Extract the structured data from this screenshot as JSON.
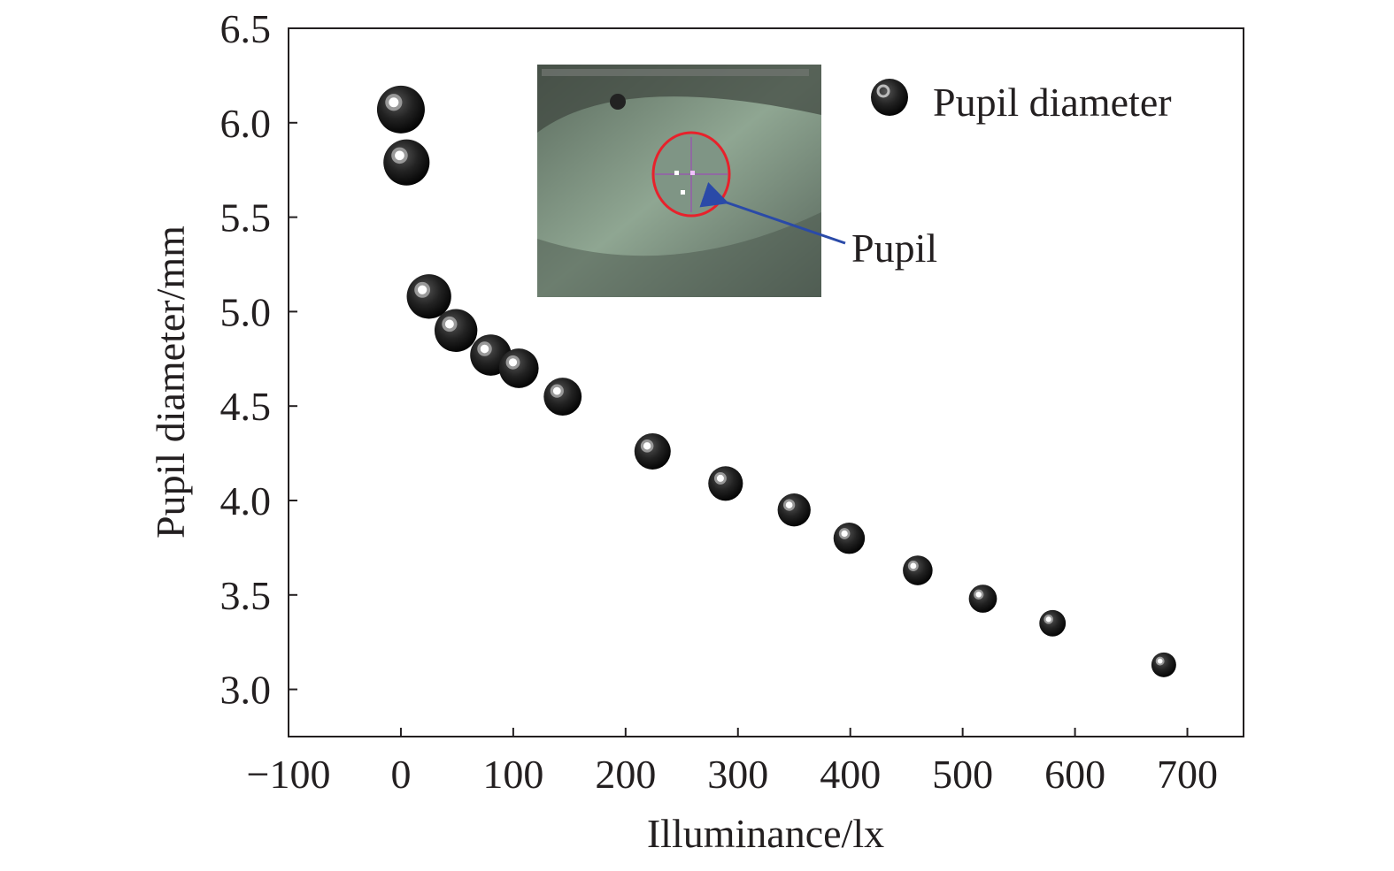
{
  "chart_data": {
    "type": "scatter",
    "title": "",
    "xlabel": "Illuminance/lx",
    "ylabel": "Pupil diameter/mm",
    "xlim": [
      -100,
      750
    ],
    "ylim": [
      2.75,
      6.5
    ],
    "xticks": [
      -100,
      0,
      100,
      200,
      300,
      400,
      500,
      600,
      700
    ],
    "xtick_labels": [
      "−100",
      "0",
      "100",
      "200",
      "300",
      "400",
      "500",
      "600",
      "700"
    ],
    "yticks": [
      3.0,
      3.5,
      4.0,
      4.5,
      5.0,
      5.5,
      6.0,
      6.5
    ],
    "ytick_labels": [
      "3.0",
      "3.5",
      "4.0",
      "4.5",
      "5.0",
      "5.5",
      "6.0",
      "6.5"
    ],
    "grid": false,
    "legend": {
      "position": "top-right",
      "entries": [
        "Pupil diameter"
      ]
    },
    "series": [
      {
        "name": "Pupil diameter",
        "x": [
          0,
          5,
          25,
          49,
          80,
          105,
          144,
          224,
          289,
          350,
          399,
          460,
          518,
          580,
          679
        ],
        "y": [
          6.07,
          5.79,
          5.08,
          4.9,
          4.77,
          4.7,
          4.55,
          4.26,
          4.09,
          3.95,
          3.8,
          3.63,
          3.48,
          3.35,
          3.13
        ]
      }
    ],
    "inset": {
      "annotation": "Pupil"
    }
  },
  "colors": {
    "axis": "#231f20",
    "marker": "#1a1a1a",
    "ring": "#e8212b",
    "arrow": "#2a4aa8"
  }
}
